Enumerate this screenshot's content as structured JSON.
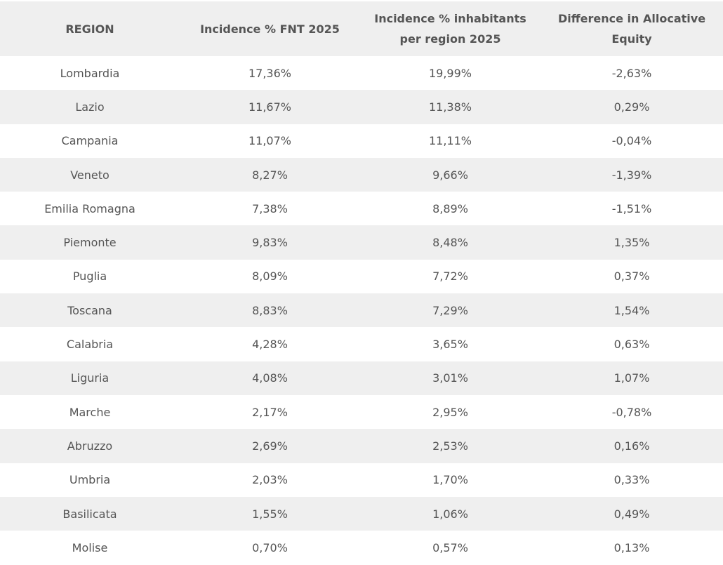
{
  "table": {
    "headers": [
      "REGION",
      "Incidence % FNT 2025",
      "Incidence % inhabitants per region 2025",
      "Difference in Allocative Equity"
    ],
    "rows": [
      [
        "Lombardia",
        "17,36%",
        "19,99%",
        "-2,63%"
      ],
      [
        "Lazio",
        "11,67%",
        "11,38%",
        "0,29%"
      ],
      [
        "Campania",
        "11,07%",
        "11,11%",
        "-0,04%"
      ],
      [
        "Veneto",
        "8,27%",
        "9,66%",
        "-1,39%"
      ],
      [
        "Emilia Romagna",
        "7,38%",
        "8,89%",
        "-1,51%"
      ],
      [
        "Piemonte",
        "9,83%",
        "8,48%",
        "1,35%"
      ],
      [
        "Puglia",
        "8,09%",
        "7,72%",
        "0,37%"
      ],
      [
        "Toscana",
        "8,83%",
        "7,29%",
        "1,54%"
      ],
      [
        "Calabria",
        "4,28%",
        "3,65%",
        "0,63%"
      ],
      [
        "Liguria",
        "4,08%",
        "3,01%",
        "1,07%"
      ],
      [
        "Marche",
        "2,17%",
        "2,95%",
        "-0,78%"
      ],
      [
        "Abruzzo",
        "2,69%",
        "2,53%",
        "0,16%"
      ],
      [
        "Umbria",
        "2,03%",
        "1,70%",
        "0,33%"
      ],
      [
        "Basilicata",
        "1,55%",
        "1,06%",
        "0,49%"
      ],
      [
        "Molise",
        "0,70%",
        "0,57%",
        "0,13%"
      ]
    ]
  },
  "colors": {
    "header_bg": "#efefef",
    "stripe_bg": "#efefef",
    "text": "#555555"
  }
}
